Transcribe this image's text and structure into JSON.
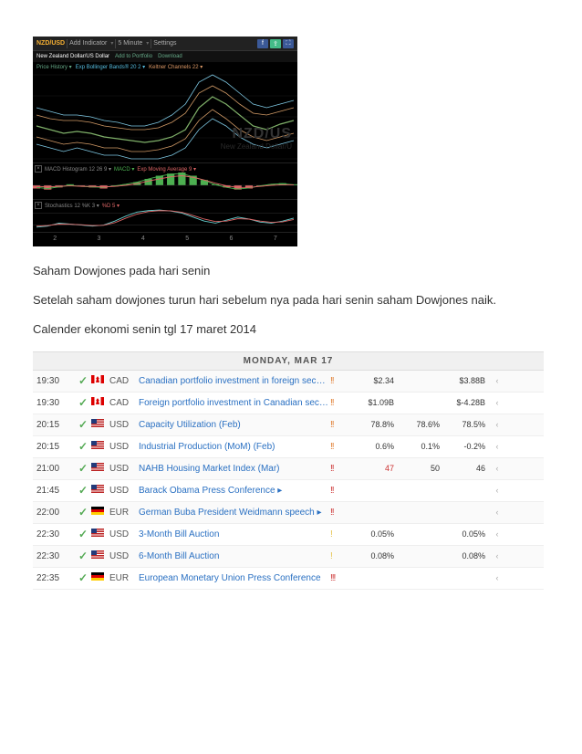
{
  "chart": {
    "toolbar": {
      "pair": "NZD/USD",
      "addIndicator": "Add Indicator",
      "timeframe": "5 Minute",
      "settings": "Settings"
    },
    "subbar": {
      "pairName": "New Zealand Dollar/US Dollar",
      "addPortfolio": "Add to Portfolio",
      "download": "Download"
    },
    "indicators": {
      "priceHistory": "Price History ▾",
      "bollinger": "Exp Bollinger Bands® 20 2 ▾",
      "keltner": "Keltner Channels 22 ▾"
    },
    "watermark": "NZD/US",
    "watermark2": "New Zealand Dollar/U",
    "main": {
      "type": "multi-line-candles",
      "background": "#000000",
      "grid_color": "#1a1a1a",
      "series": [
        {
          "name": "price",
          "color": "#7fb069",
          "width": 1.2,
          "points": [
            52,
            50,
            48,
            49,
            48,
            46,
            45,
            44,
            43,
            44,
            46,
            50,
            62,
            68,
            64,
            58,
            52,
            50,
            53,
            55
          ]
        },
        {
          "name": "bb-upper",
          "color": "#7ec8e3",
          "width": 0.8,
          "points": [
            62,
            60,
            58,
            58,
            57,
            55,
            54,
            52,
            52,
            54,
            58,
            64,
            76,
            80,
            76,
            70,
            64,
            62,
            64,
            66
          ]
        },
        {
          "name": "bb-lower",
          "color": "#7ec8e3",
          "width": 0.8,
          "points": [
            42,
            40,
            38,
            40,
            38,
            36,
            36,
            34,
            34,
            34,
            36,
            40,
            50,
            56,
            52,
            46,
            42,
            40,
            42,
            44
          ]
        },
        {
          "name": "kc-upper",
          "color": "#d19a66",
          "width": 0.8,
          "points": [
            58,
            56,
            55,
            55,
            54,
            52,
            51,
            50,
            50,
            51,
            54,
            59,
            70,
            74,
            70,
            64,
            59,
            58,
            60,
            62
          ]
        },
        {
          "name": "kc-lower",
          "color": "#d19a66",
          "width": 0.8,
          "points": [
            46,
            44,
            42,
            43,
            42,
            40,
            40,
            38,
            38,
            39,
            41,
            45,
            55,
            61,
            56,
            50,
            46,
            44,
            46,
            48
          ]
        }
      ]
    },
    "macd": {
      "label": "MACD Histogram 12 26 9 ▾",
      "sublabels": {
        "macd": "MACD ▾",
        "signal": "Exp Moving Average 9 ▾"
      },
      "bar_color_pos": "#4caf50",
      "bar_color_neg": "#d66",
      "macd_line_color": "#4caf50",
      "signal_line_color": "#d66",
      "bars": [
        -6,
        -8,
        -4,
        2,
        -2,
        -4,
        -6,
        -2,
        2,
        6,
        12,
        18,
        22,
        24,
        18,
        10,
        2,
        -4,
        -8,
        -6,
        -2,
        2,
        4,
        2
      ],
      "macd_line": [
        -4,
        -6,
        -3,
        0,
        -2,
        -3,
        -4,
        -1,
        2,
        6,
        12,
        17,
        21,
        22,
        16,
        9,
        1,
        -4,
        -7,
        -5,
        -1,
        2,
        3,
        1
      ],
      "signal_line": [
        -2,
        -3,
        -2,
        -1,
        -2,
        -2,
        -3,
        -2,
        0,
        3,
        8,
        12,
        16,
        18,
        15,
        10,
        4,
        -1,
        -4,
        -4,
        -2,
        0,
        1,
        1
      ]
    },
    "stoch": {
      "label": "Stochastics 12 %K 3 ▾",
      "sublabel": "%D 5 ▾",
      "k_color": "#6cc",
      "d_color": "#d66",
      "upper_band": 80,
      "lower_band": 20,
      "k": [
        10,
        15,
        30,
        25,
        20,
        15,
        20,
        40,
        65,
        85,
        92,
        95,
        90,
        80,
        60,
        40,
        30,
        45,
        60,
        50,
        35,
        30,
        40,
        55
      ],
      "d": [
        15,
        18,
        25,
        24,
        22,
        18,
        19,
        32,
        55,
        75,
        87,
        92,
        91,
        84,
        68,
        50,
        38,
        40,
        52,
        50,
        40,
        34,
        36,
        48
      ]
    },
    "xaxis": [
      "2",
      "3",
      "4",
      "5",
      "6",
      "7"
    ]
  },
  "text": {
    "p1": "Saham Dowjones pada hari senin",
    "p2": "Setelah saham dowjones turun hari sebelum nya pada hari senin saham Dowjones naik.",
    "p3": "Calender ekonomi senin tgl 17 maret 2014"
  },
  "calendar": {
    "header": "MONDAY, MAR 17",
    "impact_colors": {
      "low": "#e6c24a",
      "med": "#e07b2e",
      "high": "#c33333"
    },
    "rows": [
      {
        "time": "19:30",
        "cur": "CAD",
        "event": "Canadian portfolio investment in foreign securities (Jan)",
        "impact": "med",
        "bars": 2,
        "actual": "$2.34",
        "actualClass": "",
        "forecast": "",
        "previous": "$3.88B"
      },
      {
        "time": "19:30",
        "cur": "CAD",
        "event": "Foreign portfolio investment in Canadian securities (Jan)",
        "impact": "med",
        "bars": 2,
        "actual": "$1.09B",
        "actualClass": "",
        "forecast": "",
        "previous": "$-4.28B"
      },
      {
        "time": "20:15",
        "cur": "USD",
        "event": "Capacity Utilization (Feb)",
        "impact": "med",
        "bars": 2,
        "actual": "78.8%",
        "actualClass": "",
        "forecast": "78.6%",
        "previous": "78.5%"
      },
      {
        "time": "20:15",
        "cur": "USD",
        "event": "Industrial Production (MoM) (Feb)",
        "impact": "med",
        "bars": 2,
        "actual": "0.6%",
        "actualClass": "",
        "forecast": "0.1%",
        "previous": "-0.2%"
      },
      {
        "time": "21:00",
        "cur": "USD",
        "event": "NAHB Housing Market Index (Mar)",
        "impact": "high",
        "bars": 2,
        "actual": "47",
        "actualClass": "ec-actual-warn",
        "forecast": "50",
        "previous": "46"
      },
      {
        "time": "21:45",
        "cur": "USD",
        "event": "Barack Obama Press Conference ▸",
        "impact": "high",
        "bars": 2,
        "actual": "",
        "actualClass": "",
        "forecast": "",
        "previous": ""
      },
      {
        "time": "22:00",
        "cur": "EUR",
        "event": "German Buba President Weidmann speech ▸",
        "impact": "high",
        "bars": 2,
        "actual": "",
        "actualClass": "",
        "forecast": "",
        "previous": ""
      },
      {
        "time": "22:30",
        "cur": "USD",
        "event": "3-Month Bill Auction",
        "impact": "low",
        "bars": 1,
        "actual": "0.05%",
        "actualClass": "",
        "forecast": "",
        "previous": "0.05%"
      },
      {
        "time": "22:30",
        "cur": "USD",
        "event": "6-Month Bill Auction",
        "impact": "low",
        "bars": 1,
        "actual": "0.08%",
        "actualClass": "",
        "forecast": "",
        "previous": "0.08%"
      },
      {
        "time": "22:35",
        "cur": "EUR",
        "event": "European Monetary Union Press Conference",
        "impact": "high",
        "bars": 3,
        "actual": "",
        "actualClass": "",
        "forecast": "",
        "previous": ""
      }
    ]
  }
}
